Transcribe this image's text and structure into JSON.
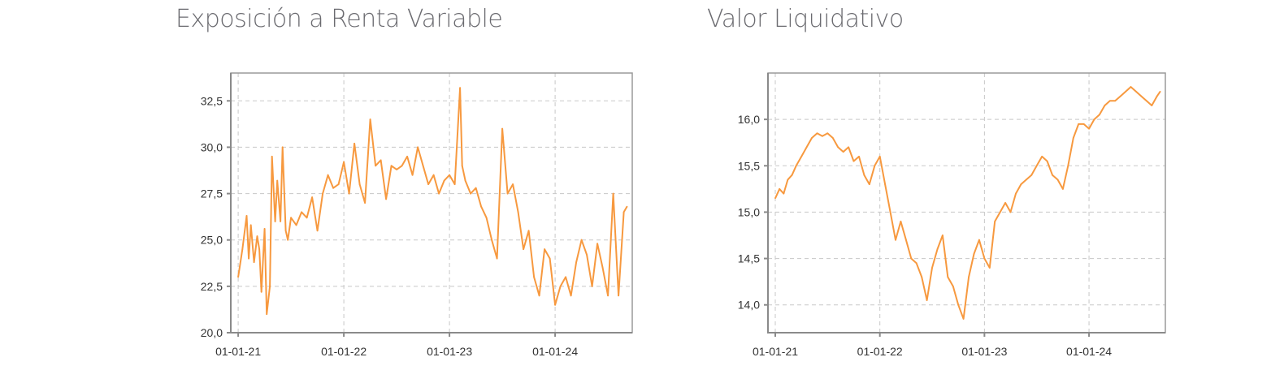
{
  "colors": {
    "series": "#f7993f",
    "title": "#6b6b70",
    "axis": "#8a8a8a",
    "grid": "#c8c8c8"
  },
  "chart_data": [
    {
      "type": "line",
      "title": "Exposición a Renta Variable",
      "xlabel": "",
      "ylabel": "",
      "ylim": [
        20.0,
        34.0
      ],
      "yticks": [
        "20,0",
        "22,5",
        "25,0",
        "27,5",
        "30,0",
        "32,5"
      ],
      "ytick_values": [
        20.0,
        22.5,
        25.0,
        27.5,
        30.0,
        32.5
      ],
      "xticks": [
        "01-01-21",
        "01-01-22",
        "01-01-23",
        "01-01-24"
      ],
      "xtick_values": [
        2021.0,
        2022.0,
        2023.0,
        2024.0
      ],
      "xlim": [
        2020.93,
        2024.73
      ],
      "grid": true,
      "series": [
        {
          "x": [
            2021.0,
            2021.04,
            2021.08,
            2021.1,
            2021.12,
            2021.15,
            2021.18,
            2021.2,
            2021.22,
            2021.25,
            2021.27,
            2021.3,
            2021.32,
            2021.35,
            2021.37,
            2021.4,
            2021.42,
            2021.45,
            2021.47,
            2021.5,
            2021.55,
            2021.6,
            2021.65,
            2021.7,
            2021.75,
            2021.8,
            2021.85,
            2021.9,
            2021.95,
            2022.0,
            2022.05,
            2022.1,
            2022.15,
            2022.2,
            2022.25,
            2022.3,
            2022.35,
            2022.4,
            2022.45,
            2022.5,
            2022.55,
            2022.6,
            2022.65,
            2022.7,
            2022.75,
            2022.8,
            2022.85,
            2022.9,
            2022.95,
            2023.0,
            2023.05,
            2023.1,
            2023.12,
            2023.15,
            2023.2,
            2023.25,
            2023.3,
            2023.35,
            2023.4,
            2023.45,
            2023.5,
            2023.55,
            2023.6,
            2023.65,
            2023.7,
            2023.75,
            2023.8,
            2023.85,
            2023.9,
            2023.95,
            2024.0,
            2024.05,
            2024.1,
            2024.15,
            2024.2,
            2024.25,
            2024.3,
            2024.35,
            2024.4,
            2024.45,
            2024.5,
            2024.55,
            2024.6,
            2024.65,
            2024.68
          ],
          "values": [
            23.0,
            24.5,
            26.3,
            24.0,
            25.8,
            23.8,
            25.2,
            24.5,
            22.2,
            25.6,
            21.0,
            22.5,
            29.5,
            26.0,
            28.2,
            26.0,
            30.0,
            25.5,
            25.0,
            26.2,
            25.8,
            26.5,
            26.2,
            27.3,
            25.5,
            27.5,
            28.5,
            27.8,
            28.0,
            29.2,
            27.5,
            30.2,
            28.0,
            27.0,
            31.5,
            29.0,
            29.3,
            27.2,
            29.0,
            28.8,
            29.0,
            29.5,
            28.5,
            30.0,
            29.0,
            28.0,
            28.5,
            27.5,
            28.2,
            28.5,
            28.0,
            33.2,
            29.0,
            28.2,
            27.5,
            27.8,
            26.8,
            26.2,
            25.0,
            24.0,
            31.0,
            27.5,
            28.0,
            26.5,
            24.5,
            25.5,
            23.0,
            22.0,
            24.5,
            24.0,
            21.5,
            22.5,
            23.0,
            22.0,
            23.8,
            25.0,
            24.2,
            22.5,
            24.8,
            23.5,
            22.0,
            27.5,
            22.0,
            26.5,
            26.8
          ]
        }
      ]
    },
    {
      "type": "line",
      "title": "Valor Liquidativo",
      "xlabel": "",
      "ylabel": "",
      "ylim": [
        13.7,
        16.5
      ],
      "yticks": [
        "14,0",
        "14,5",
        "15,0",
        "15,5",
        "16,0"
      ],
      "ytick_values": [
        14.0,
        14.5,
        15.0,
        15.5,
        16.0
      ],
      "xticks": [
        "01-01-21",
        "01-01-22",
        "01-01-23",
        "01-01-24"
      ],
      "xtick_values": [
        2021.0,
        2022.0,
        2023.0,
        2024.0
      ],
      "xlim": [
        2020.93,
        2024.73
      ],
      "grid": true,
      "series": [
        {
          "x": [
            2021.0,
            2021.04,
            2021.08,
            2021.12,
            2021.16,
            2021.2,
            2021.25,
            2021.3,
            2021.35,
            2021.4,
            2021.45,
            2021.5,
            2021.55,
            2021.6,
            2021.65,
            2021.7,
            2021.75,
            2021.8,
            2021.85,
            2021.9,
            2021.95,
            2022.0,
            2022.05,
            2022.1,
            2022.15,
            2022.2,
            2022.25,
            2022.3,
            2022.35,
            2022.4,
            2022.45,
            2022.5,
            2022.55,
            2022.6,
            2022.65,
            2022.7,
            2022.75,
            2022.8,
            2022.85,
            2022.9,
            2022.95,
            2023.0,
            2023.05,
            2023.1,
            2023.15,
            2023.2,
            2023.25,
            2023.3,
            2023.35,
            2023.4,
            2023.45,
            2023.5,
            2023.55,
            2023.6,
            2023.65,
            2023.7,
            2023.75,
            2023.8,
            2023.85,
            2023.9,
            2023.95,
            2024.0,
            2024.05,
            2024.1,
            2024.15,
            2024.2,
            2024.25,
            2024.3,
            2024.35,
            2024.4,
            2024.45,
            2024.5,
            2024.55,
            2024.6,
            2024.65,
            2024.68
          ],
          "values": [
            15.15,
            15.25,
            15.2,
            15.35,
            15.4,
            15.5,
            15.6,
            15.7,
            15.8,
            15.85,
            15.82,
            15.85,
            15.8,
            15.7,
            15.65,
            15.7,
            15.55,
            15.6,
            15.4,
            15.3,
            15.5,
            15.6,
            15.3,
            15.0,
            14.7,
            14.9,
            14.7,
            14.5,
            14.45,
            14.3,
            14.05,
            14.4,
            14.6,
            14.75,
            14.3,
            14.2,
            14.0,
            13.85,
            14.3,
            14.55,
            14.7,
            14.5,
            14.4,
            14.9,
            15.0,
            15.1,
            15.0,
            15.2,
            15.3,
            15.35,
            15.4,
            15.5,
            15.6,
            15.55,
            15.4,
            15.35,
            15.25,
            15.5,
            15.8,
            15.95,
            15.95,
            15.9,
            16.0,
            16.05,
            16.15,
            16.2,
            16.2,
            16.25,
            16.3,
            16.35,
            16.3,
            16.25,
            16.2,
            16.15,
            16.25,
            16.3
          ]
        }
      ]
    }
  ]
}
